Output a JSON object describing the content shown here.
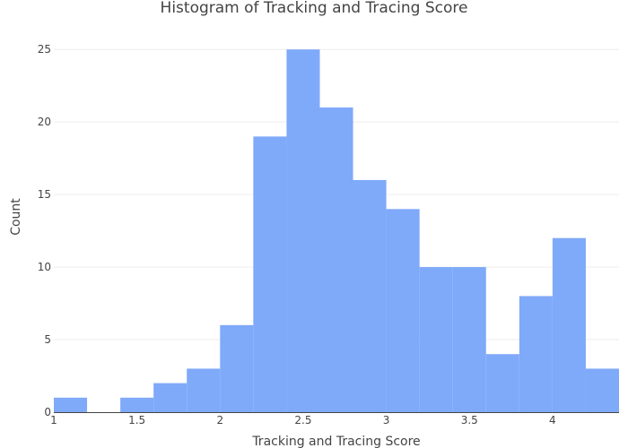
{
  "chart_data": {
    "type": "bar",
    "title": "Histogram of Tracking and Tracing Score",
    "xlabel": "Tracking and Tracing Score",
    "ylabel": "Count",
    "bin_start": 1.0,
    "bin_width": 0.2,
    "values": [
      1,
      0,
      1,
      2,
      3,
      6,
      19,
      25,
      21,
      16,
      14,
      10,
      10,
      4,
      8,
      12,
      3
    ],
    "xlim": [
      1.0,
      4.4
    ],
    "ylim": [
      0,
      26
    ],
    "x_ticks": [
      {
        "value": 1,
        "label": "1"
      },
      {
        "value": 1.5,
        "label": "1.5"
      },
      {
        "value": 2,
        "label": "2"
      },
      {
        "value": 2.5,
        "label": "2.5"
      },
      {
        "value": 3,
        "label": "3"
      },
      {
        "value": 3.5,
        "label": "3.5"
      },
      {
        "value": 4,
        "label": "4"
      }
    ],
    "y_ticks": [
      {
        "value": 0,
        "label": "0"
      },
      {
        "value": 5,
        "label": "5"
      },
      {
        "value": 10,
        "label": "10"
      },
      {
        "value": 15,
        "label": "15"
      },
      {
        "value": 20,
        "label": "20"
      },
      {
        "value": 25,
        "label": "25"
      }
    ],
    "grid": true,
    "bar_color": "#7fa9f9"
  }
}
